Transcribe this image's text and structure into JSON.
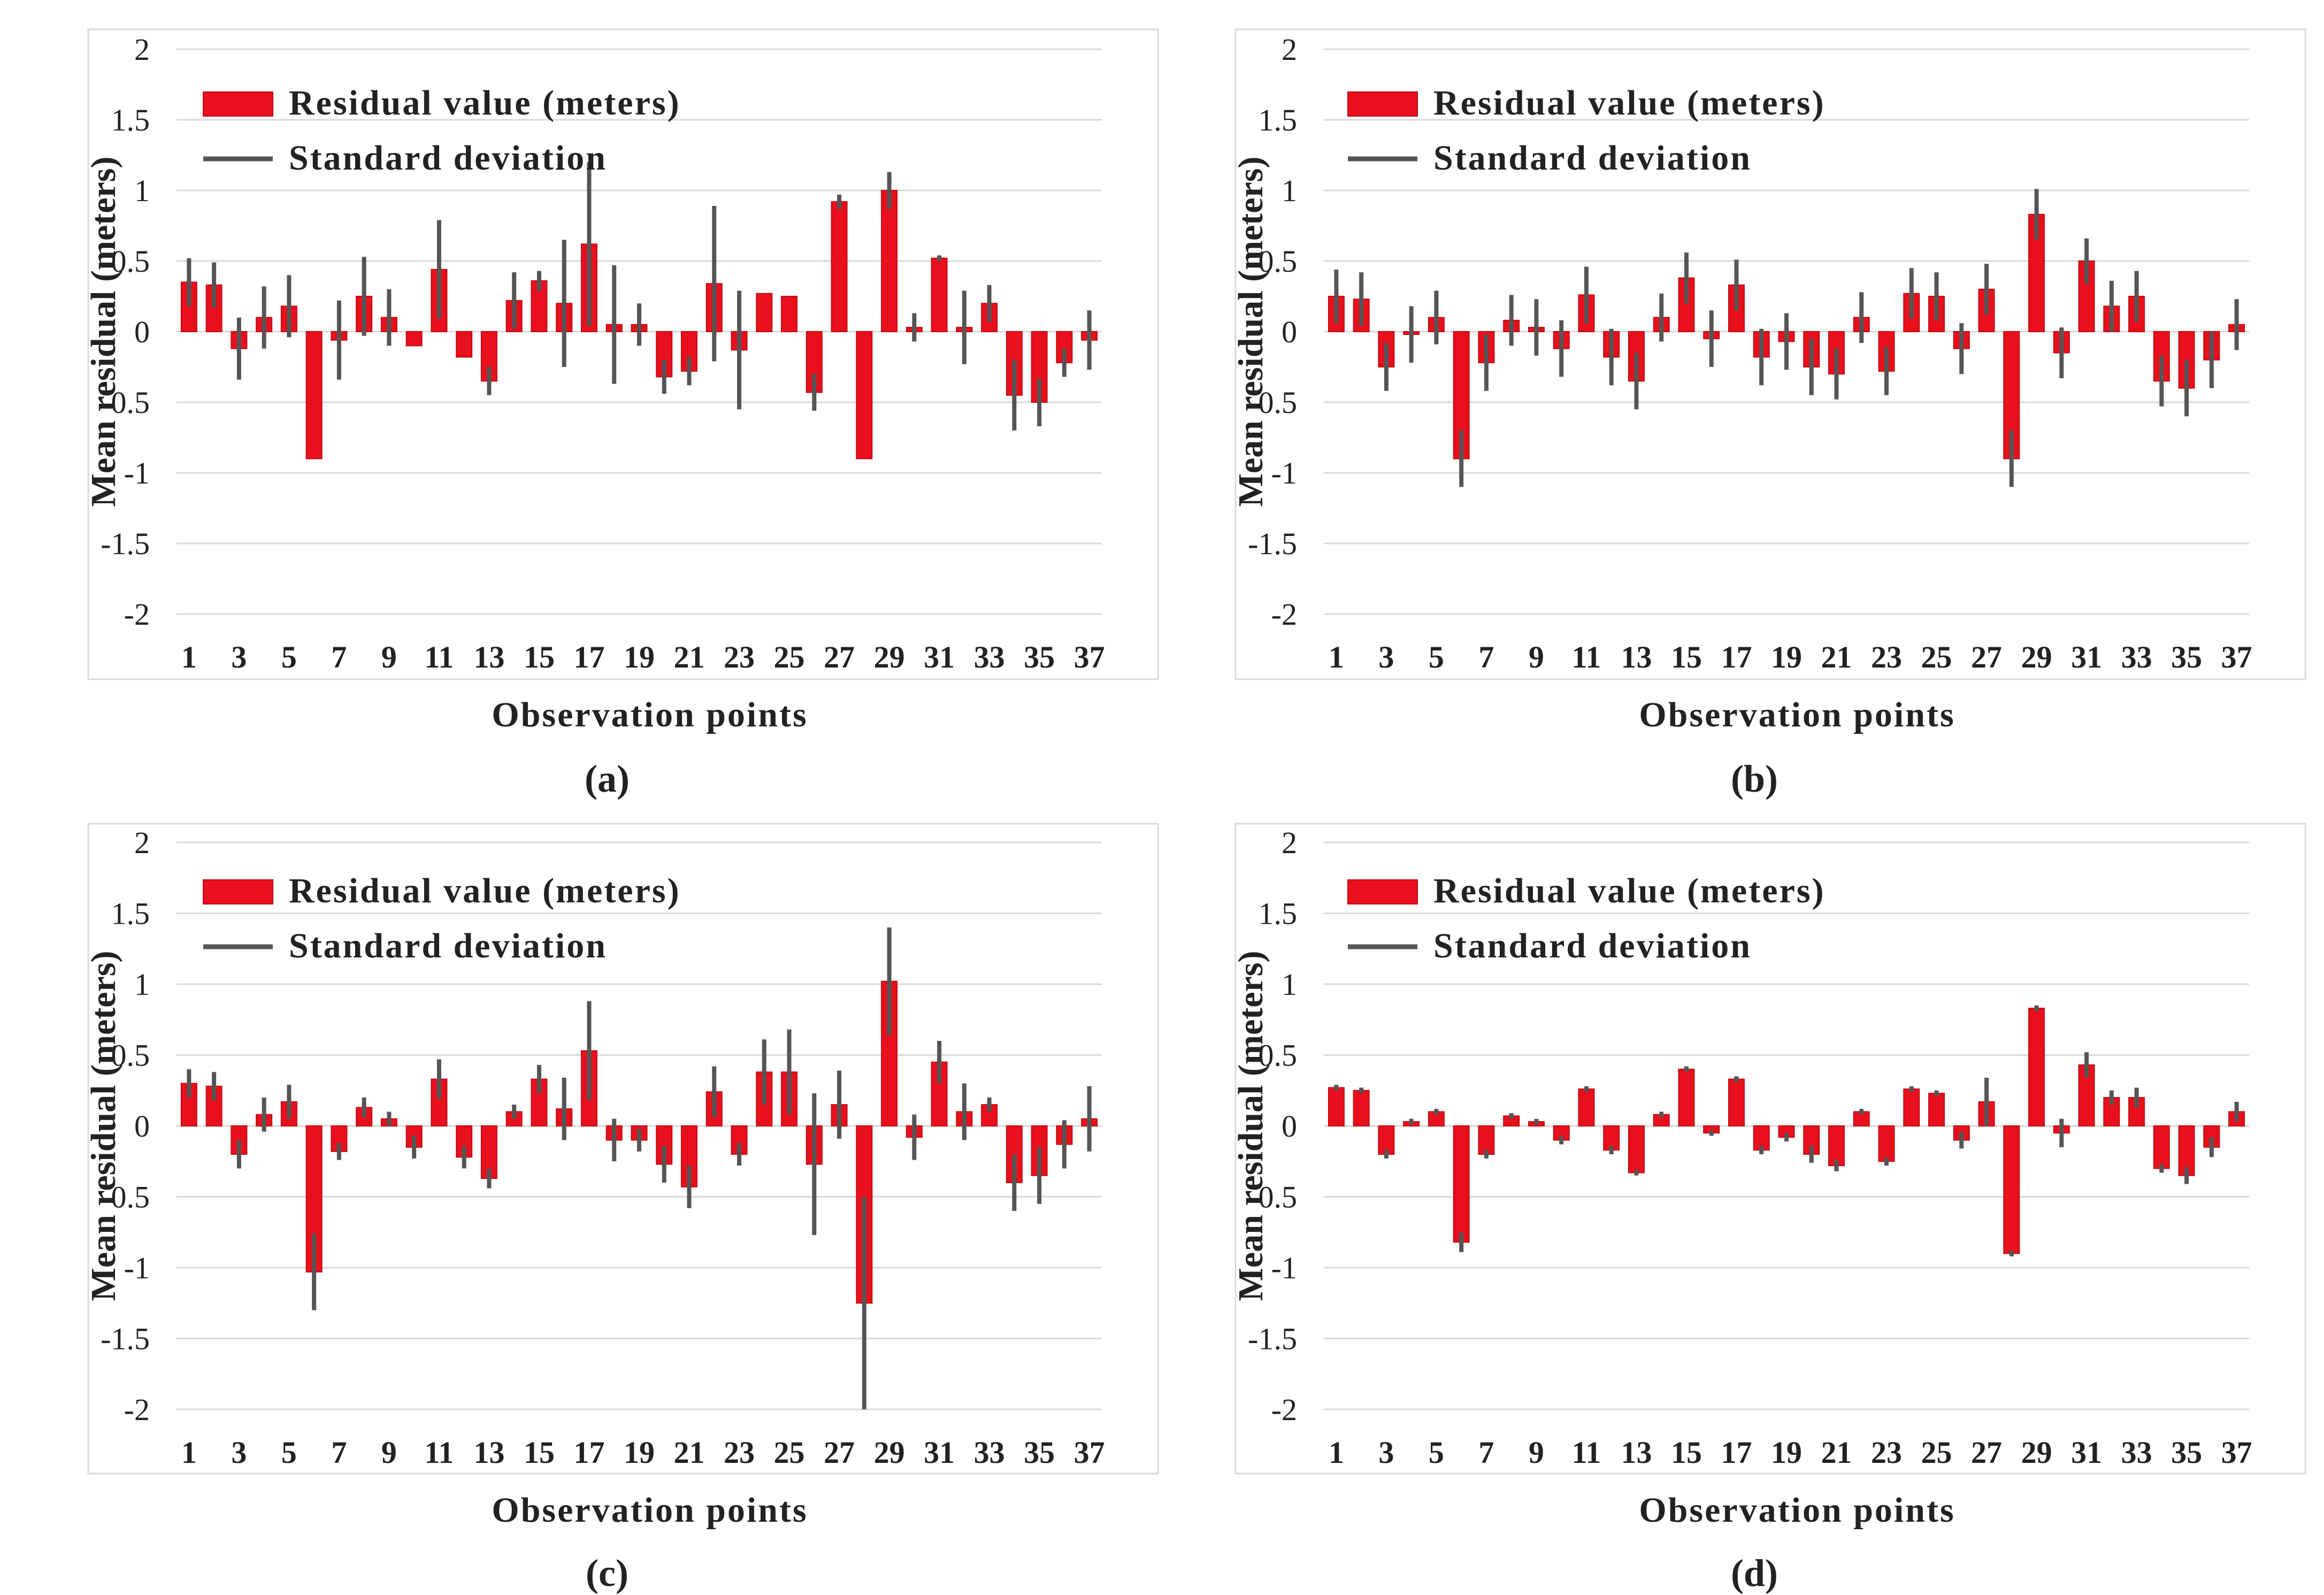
{
  "colors": {
    "bar": "#e8101c",
    "bar_edge": "#c40a14",
    "error": "#555555",
    "grid": "#d9d9d9",
    "frame": "#d9d9d9",
    "text": "#222222"
  },
  "chart_data": [
    {
      "type": "bar",
      "panel_label": "(a)",
      "xlabel": "Observation points",
      "ylabel": "Mean residual (meters)",
      "ylim": [
        -2,
        2
      ],
      "yticks": [
        "-2",
        "-1.5",
        "-1",
        "-0.5",
        "0",
        "0.5",
        "1",
        "1.5",
        "2"
      ],
      "xticklabels": [
        "1",
        "3",
        "5",
        "7",
        "9",
        "11",
        "13",
        "15",
        "17",
        "19",
        "21",
        "23",
        "25",
        "27",
        "29",
        "31",
        "33",
        "35",
        "37"
      ],
      "legend": {
        "bar_label": "Residual value (meters)",
        "line_label": "Standard deviation",
        "placement": "top-left"
      },
      "categories": [
        1,
        2,
        3,
        4,
        5,
        6,
        7,
        8,
        9,
        10,
        11,
        12,
        13,
        14,
        15,
        16,
        17,
        18,
        19,
        20,
        21,
        22,
        23,
        24,
        25,
        26,
        27,
        28,
        29,
        30,
        31,
        32,
        33,
        34,
        35,
        36,
        37
      ],
      "values": [
        0.35,
        0.33,
        -0.12,
        0.1,
        0.18,
        -0.9,
        -0.06,
        0.25,
        0.1,
        -0.1,
        0.44,
        -0.18,
        -0.35,
        0.22,
        0.36,
        0.2,
        0.62,
        0.05,
        0.05,
        -0.32,
        -0.28,
        0.34,
        -0.13,
        0.27,
        0.25,
        -0.43,
        0.92,
        -0.9,
        1.0,
        0.03,
        0.52,
        0.03,
        0.2,
        -0.45,
        -0.5,
        -0.22,
        -0.06
      ],
      "errors": [
        0.17,
        0.16,
        0.22,
        0.22,
        0.22,
        0,
        0.28,
        0.28,
        0.2,
        0,
        0.35,
        0,
        0.1,
        0.2,
        0.07,
        0.45,
        0.58,
        0.42,
        0.15,
        0.12,
        0.1,
        0.55,
        0.42,
        0,
        0,
        0.13,
        0.05,
        0,
        0.13,
        0.1,
        0.02,
        0.26,
        0.13,
        0.25,
        0.17,
        0.1,
        0.21
      ]
    },
    {
      "type": "bar",
      "panel_label": "(b)",
      "xlabel": "Observation points",
      "ylabel": "Mean residual (meters)",
      "ylim": [
        -2,
        2
      ],
      "yticks": [
        "-2",
        "-1.5",
        "-1",
        "-0.5",
        "0",
        "0.5",
        "1",
        "1.5",
        "2"
      ],
      "xticklabels": [
        "1",
        "3",
        "5",
        "7",
        "9",
        "11",
        "13",
        "15",
        "17",
        "19",
        "21",
        "23",
        "25",
        "27",
        "29",
        "31",
        "33",
        "35",
        "37"
      ],
      "legend": {
        "bar_label": "Residual value (meters)",
        "line_label": "Standard deviation",
        "placement": "top-left"
      },
      "categories": [
        1,
        2,
        3,
        4,
        5,
        6,
        7,
        8,
        9,
        10,
        11,
        12,
        13,
        14,
        15,
        16,
        17,
        18,
        19,
        20,
        21,
        22,
        23,
        24,
        25,
        26,
        27,
        28,
        29,
        30,
        31,
        32,
        33,
        34,
        35,
        36,
        37
      ],
      "values": [
        0.25,
        0.23,
        -0.25,
        -0.02,
        0.1,
        -0.9,
        -0.22,
        0.08,
        0.03,
        -0.12,
        0.26,
        -0.18,
        -0.35,
        0.1,
        0.38,
        -0.05,
        0.33,
        -0.18,
        -0.07,
        -0.25,
        -0.3,
        0.1,
        -0.28,
        0.27,
        0.25,
        -0.12,
        0.3,
        -0.9,
        0.83,
        -0.15,
        0.5,
        0.18,
        0.25,
        -0.35,
        -0.4,
        -0.2,
        0.05
      ],
      "errors": [
        0.19,
        0.19,
        0.17,
        0.2,
        0.19,
        0.2,
        0.2,
        0.18,
        0.2,
        0.2,
        0.2,
        0.2,
        0.2,
        0.17,
        0.18,
        0.2,
        0.18,
        0.2,
        0.2,
        0.2,
        0.18,
        0.18,
        0.17,
        0.18,
        0.17,
        0.18,
        0.18,
        0.2,
        0.18,
        0.18,
        0.16,
        0.18,
        0.18,
        0.18,
        0.2,
        0.2,
        0.18
      ]
    },
    {
      "type": "bar",
      "panel_label": "(c)",
      "xlabel": "Observation points",
      "ylabel": "Mean residual (meters)",
      "ylim": [
        -2,
        2
      ],
      "yticks": [
        "-2",
        "-1.5",
        "-1",
        "-0.5",
        "0",
        "0.5",
        "1",
        "1.5",
        "2"
      ],
      "xticklabels": [
        "1",
        "3",
        "5",
        "7",
        "9",
        "11",
        "13",
        "15",
        "17",
        "19",
        "21",
        "23",
        "25",
        "27",
        "29",
        "31",
        "33",
        "35",
        "37"
      ],
      "legend": {
        "bar_label": "Residual value (meters)",
        "line_label": "Standard deviation",
        "placement": "top-left"
      },
      "categories": [
        1,
        2,
        3,
        4,
        5,
        6,
        7,
        8,
        9,
        10,
        11,
        12,
        13,
        14,
        15,
        16,
        17,
        18,
        19,
        20,
        21,
        22,
        23,
        24,
        25,
        26,
        27,
        28,
        29,
        30,
        31,
        32,
        33,
        34,
        35,
        36,
        37
      ],
      "values": [
        0.3,
        0.28,
        -0.2,
        0.08,
        0.17,
        -1.03,
        -0.18,
        0.13,
        0.05,
        -0.15,
        0.33,
        -0.22,
        -0.37,
        0.1,
        0.33,
        0.12,
        0.53,
        -0.1,
        -0.1,
        -0.27,
        -0.43,
        0.24,
        -0.2,
        0.38,
        0.38,
        -0.27,
        0.15,
        -1.25,
        1.02,
        -0.08,
        0.45,
        0.1,
        0.15,
        -0.4,
        -0.35,
        -0.13,
        0.05
      ],
      "errors": [
        0.1,
        0.1,
        0.1,
        0.12,
        0.12,
        0.27,
        0.06,
        0.07,
        0.05,
        0.08,
        0.14,
        0.08,
        0.07,
        0.05,
        0.1,
        0.22,
        0.35,
        0.15,
        0.08,
        0.13,
        0.15,
        0.18,
        0.08,
        0.23,
        0.3,
        0.5,
        0.24,
        0.75,
        0.38,
        0.16,
        0.15,
        0.2,
        0.05,
        0.2,
        0.2,
        0.17,
        0.23
      ]
    },
    {
      "type": "bar",
      "panel_label": "(d)",
      "xlabel": "Observation points",
      "ylabel": "Mean residual (meters)",
      "ylim": [
        -2,
        2
      ],
      "yticks": [
        "-2",
        "-1.5",
        "-1",
        "-0.5",
        "0",
        "0.5",
        "1",
        "1.5",
        "2"
      ],
      "xticklabels": [
        "1",
        "3",
        "5",
        "7",
        "9",
        "11",
        "13",
        "15",
        "17",
        "19",
        "21",
        "23",
        "25",
        "27",
        "29",
        "31",
        "33",
        "35",
        "37"
      ],
      "legend": {
        "bar_label": "Residual value (meters)",
        "line_label": "Standard deviation",
        "placement": "top-left"
      },
      "categories": [
        1,
        2,
        3,
        4,
        5,
        6,
        7,
        8,
        9,
        10,
        11,
        12,
        13,
        14,
        15,
        16,
        17,
        18,
        19,
        20,
        21,
        22,
        23,
        24,
        25,
        26,
        27,
        28,
        29,
        30,
        31,
        32,
        33,
        34,
        35,
        36,
        37
      ],
      "values": [
        0.27,
        0.25,
        -0.2,
        0.03,
        0.1,
        -0.82,
        -0.2,
        0.07,
        0.03,
        -0.1,
        0.26,
        -0.17,
        -0.33,
        0.08,
        0.4,
        -0.05,
        0.33,
        -0.17,
        -0.08,
        -0.2,
        -0.28,
        0.1,
        -0.25,
        0.26,
        0.23,
        -0.1,
        0.17,
        -0.9,
        0.83,
        -0.05,
        0.43,
        0.2,
        0.2,
        -0.3,
        -0.35,
        -0.15,
        0.1
      ],
      "errors": [
        0.02,
        0.02,
        0.03,
        0.02,
        0.02,
        0.07,
        0.03,
        0.02,
        0.02,
        0.03,
        0.02,
        0.03,
        0.02,
        0.02,
        0.02,
        0.02,
        0.02,
        0.03,
        0.03,
        0.06,
        0.04,
        0.02,
        0.03,
        0.02,
        0.02,
        0.06,
        0.17,
        0.02,
        0.02,
        0.1,
        0.09,
        0.05,
        0.07,
        0.03,
        0.06,
        0.07,
        0.07
      ]
    }
  ]
}
